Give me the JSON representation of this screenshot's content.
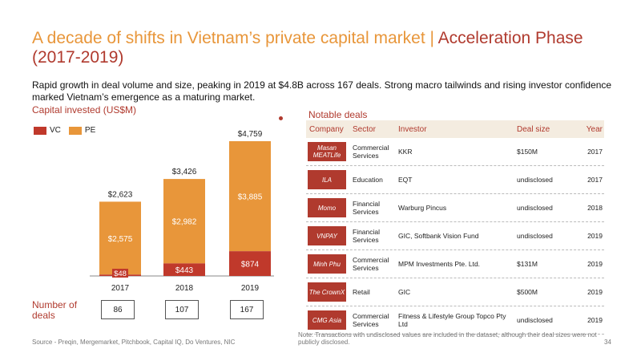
{
  "title": {
    "main": "A decade of shifts in Vietnam’s private capital market | ",
    "accent": "Acceleration Phase (2017-2019)"
  },
  "subtitle": "Rapid growth in deal volume and size, peaking in 2019 at $4.8B across 167 deals. Strong macro tailwinds and rising investor confidence marked Vietnam’s emergence as a maturing market.",
  "chart_section_label": "Capital invested (US$M)",
  "deals_section_label": "Notable deals",
  "number_of_deals_label": "Number of deals",
  "colors": {
    "vc": "#c0392b",
    "pe": "#e8963a",
    "accent": "#b03a2e",
    "header_bg": "#f4ece0"
  },
  "chart_data": {
    "type": "bar",
    "stacked": true,
    "categories": [
      "2017",
      "2018",
      "2019"
    ],
    "series": [
      {
        "name": "VC",
        "values": [
          48,
          443,
          874
        ],
        "labels": [
          "$48",
          "$443",
          "$874"
        ]
      },
      {
        "name": "PE",
        "values": [
          2575,
          2982,
          3885
        ],
        "labels": [
          "$2,575",
          "$2,982",
          "$3,885"
        ]
      }
    ],
    "totals": [
      2623,
      3426,
      4759
    ],
    "total_labels": [
      "$2,623",
      "$3,426",
      "$4,759"
    ],
    "deal_counts": [
      "86",
      "107",
      "167"
    ],
    "legend": [
      "VC",
      "PE"
    ],
    "legend_position": "top-left",
    "ylim": [
      0,
      4759
    ],
    "grid": false
  },
  "table": {
    "headers": {
      "company": "Company",
      "sector": "Sector",
      "investor": "Investor",
      "deal_size": "Deal size",
      "year": "Year"
    },
    "rows": [
      {
        "company": "Masan MEATLife",
        "sector": "Commercial Services",
        "investor": "KKR",
        "deal_size": "$150M",
        "year": "2017"
      },
      {
        "company": "ILA",
        "sector": "Education",
        "investor": "EQT",
        "deal_size": "undisclosed",
        "year": "2017"
      },
      {
        "company": "Momo",
        "sector": "Financial Services",
        "investor": "Warburg Pincus",
        "deal_size": "undisclosed",
        "year": "2018"
      },
      {
        "company": "VNPAY",
        "sector": "Financial Services",
        "investor": "GIC, Softbank Vision Fund",
        "deal_size": "undisclosed",
        "year": "2019"
      },
      {
        "company": "Minh Phu",
        "sector": "Commercial Services",
        "investor": "MPM Investments Pte. Ltd.",
        "deal_size": "$131M",
        "year": "2019"
      },
      {
        "company": "The CrownX",
        "sector": "Retail",
        "investor": "GIC",
        "deal_size": "$500M",
        "year": "2019"
      },
      {
        "company": "CMG Asia",
        "sector": "Commercial Services",
        "investor": "Fitness & Lifestyle Group Topco Pty Ltd",
        "deal_size": "undisclosed",
        "year": "2019"
      }
    ]
  },
  "note": "Note: Transactions with undisclosed values are included in the dataset, although their deal sizes were not publicly disclosed.",
  "source": "Source - Preqin, Mergemarket, Pitchbook, Capital IQ, Do Ventures, NIC",
  "page_number": "34"
}
